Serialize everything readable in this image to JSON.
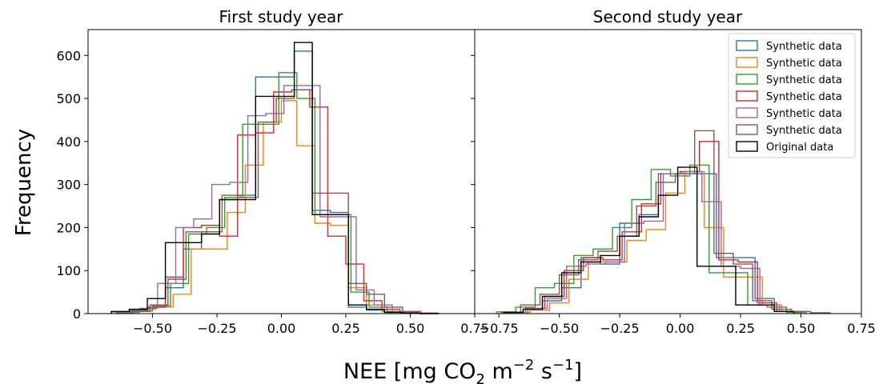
{
  "figure": {
    "ylabel": "Frequency",
    "xlabel_main": "NEE [mg CO",
    "xlabel_sub": "2",
    "xlabel_mid": " m",
    "xlabel_sup1": "−2",
    "xlabel_mid2": " s",
    "xlabel_sup2": "−1",
    "xlabel_end": "]"
  },
  "chart_data": [
    {
      "type": "histogram",
      "title": "First study year",
      "xlim": [
        -0.75,
        0.75
      ],
      "ylim": [
        0,
        660
      ],
      "xticks": [
        -0.5,
        -0.25,
        0.0,
        0.25,
        0.5,
        0.75
      ],
      "xtick_labels": [
        "−0.50",
        "−0.25",
        "0.00",
        "0.25",
        "0.50",
        "0.75"
      ],
      "yticks": [
        0,
        100,
        200,
        300,
        400,
        500,
        600
      ],
      "series": [
        {
          "color": "#1f77b4",
          "bins": [
            -0.66,
            -0.59,
            -0.52,
            -0.45,
            -0.38,
            -0.31,
            -0.24,
            -0.17,
            -0.1,
            -0.03,
            0.05,
            0.12,
            0.19,
            0.26,
            0.33,
            0.4,
            0.47,
            0.54,
            0.61
          ],
          "counts": [
            4,
            8,
            15,
            60,
            150,
            190,
            265,
            275,
            550,
            550,
            610,
            240,
            235,
            15,
            8,
            3,
            1,
            0
          ]
        },
        {
          "color": "#ff7f0e",
          "bins": [
            -0.62,
            -0.55,
            -0.49,
            -0.42,
            -0.35,
            -0.28,
            -0.21,
            -0.14,
            -0.07,
            0.0,
            0.06,
            0.13,
            0.19,
            0.26,
            0.33,
            0.39,
            0.46,
            0.53
          ],
          "counts": [
            3,
            10,
            15,
            45,
            150,
            150,
            235,
            345,
            445,
            495,
            390,
            210,
            205,
            60,
            20,
            5,
            1
          ]
        },
        {
          "color": "#2ca02c",
          "bins": [
            -0.64,
            -0.57,
            -0.5,
            -0.43,
            -0.36,
            -0.29,
            -0.22,
            -0.15,
            -0.08,
            -0.01,
            0.06,
            0.13,
            0.2,
            0.27,
            0.34,
            0.41,
            0.48,
            0.55
          ],
          "counts": [
            2,
            6,
            18,
            70,
            185,
            200,
            270,
            440,
            440,
            560,
            500,
            230,
            230,
            50,
            15,
            5,
            1
          ]
        },
        {
          "color": "#d62728",
          "bins": [
            -0.59,
            -0.52,
            -0.45,
            -0.38,
            -0.31,
            -0.24,
            -0.17,
            -0.1,
            -0.03,
            0.04,
            0.11,
            0.18,
            0.25,
            0.32,
            0.39,
            0.46,
            0.53,
            0.6
          ],
          "counts": [
            5,
            15,
            85,
            200,
            205,
            180,
            415,
            420,
            515,
            520,
            480,
            180,
            115,
            30,
            10,
            3,
            1
          ]
        },
        {
          "color": "#9467bd",
          "bins": [
            -0.62,
            -0.55,
            -0.48,
            -0.41,
            -0.34,
            -0.27,
            -0.2,
            -0.13,
            -0.06,
            0.01,
            0.08,
            0.15,
            0.22,
            0.29,
            0.36,
            0.43,
            0.5
          ],
          "counts": [
            3,
            12,
            70,
            200,
            220,
            300,
            305,
            460,
            465,
            530,
            530,
            225,
            225,
            55,
            20,
            4
          ]
        },
        {
          "color": "#8c564b",
          "bins": [
            -0.58,
            -0.51,
            -0.44,
            -0.37,
            -0.3,
            -0.23,
            -0.16,
            -0.09,
            -0.02,
            0.05,
            0.12,
            0.19,
            0.26,
            0.33,
            0.4,
            0.47,
            0.54,
            0.61
          ],
          "counts": [
            5,
            20,
            80,
            190,
            190,
            275,
            270,
            445,
            500,
            520,
            280,
            280,
            70,
            45,
            15,
            5,
            1
          ]
        },
        {
          "color": "#000000",
          "bins": [
            -0.66,
            -0.59,
            -0.52,
            -0.45,
            -0.38,
            -0.31,
            -0.24,
            -0.17,
            -0.1,
            -0.03,
            0.05,
            0.12,
            0.19,
            0.26,
            0.33,
            0.4,
            0.47,
            0.54,
            0.61
          ],
          "counts": [
            5,
            10,
            35,
            165,
            165,
            185,
            265,
            265,
            505,
            505,
            630,
            230,
            230,
            20,
            10,
            3,
            1,
            0
          ]
        }
      ]
    },
    {
      "type": "histogram",
      "title": "Second study year",
      "xlim": [
        -0.85,
        0.75
      ],
      "ylim": [
        0,
        660
      ],
      "xticks": [
        -0.75,
        -0.5,
        -0.25,
        0.0,
        0.25,
        0.5,
        0.75
      ],
      "xtick_labels": [
        "−0.75",
        "−0.50",
        "−0.25",
        "0.00",
        "0.25",
        "0.50",
        "0.75"
      ],
      "yticks": [
        0,
        100,
        200,
        300,
        400,
        500,
        600
      ],
      "legend": {
        "placement": "upper right",
        "entries": [
          {
            "label": "Synthetic data",
            "color": "#1f77b4"
          },
          {
            "label": "Synthetic data",
            "color": "#ff7f0e"
          },
          {
            "label": "Synthetic data",
            "color": "#2ca02c"
          },
          {
            "label": "Synthetic data",
            "color": "#d62728"
          },
          {
            "label": "Synthetic data",
            "color": "#9467bd"
          },
          {
            "label": "Synthetic data",
            "color": "#8c564b"
          },
          {
            "label": "Original data",
            "color": "#000000"
          }
        ]
      },
      "series": [
        {
          "color": "#1f77b4",
          "bins": [
            -0.73,
            -0.65,
            -0.57,
            -0.49,
            -0.41,
            -0.33,
            -0.25,
            -0.17,
            -0.09,
            -0.01,
            0.07,
            0.15,
            0.23,
            0.31,
            0.39,
            0.47
          ],
          "counts": [
            3,
            10,
            30,
            60,
            130,
            115,
            210,
            230,
            325,
            325,
            325,
            130,
            130,
            35,
            5
          ]
        },
        {
          "color": "#ff7f0e",
          "bins": [
            -0.7,
            -0.62,
            -0.54,
            -0.46,
            -0.38,
            -0.3,
            -0.22,
            -0.14,
            -0.06,
            0.02,
            0.1,
            0.18,
            0.26,
            0.34,
            0.42,
            0.5
          ],
          "counts": [
            3,
            8,
            25,
            80,
            120,
            120,
            170,
            195,
            280,
            330,
            200,
            85,
            85,
            20,
            5
          ]
        },
        {
          "color": "#2ca02c",
          "bins": [
            -0.76,
            -0.68,
            -0.6,
            -0.52,
            -0.44,
            -0.36,
            -0.28,
            -0.2,
            -0.12,
            -0.04,
            0.04,
            0.12,
            0.2,
            0.28,
            0.36,
            0.44,
            0.52
          ],
          "counts": [
            4,
            15,
            60,
            70,
            135,
            150,
            200,
            265,
            335,
            320,
            345,
            95,
            95,
            20,
            15,
            3
          ]
        },
        {
          "color": "#d62728",
          "bins": [
            -0.72,
            -0.64,
            -0.56,
            -0.48,
            -0.4,
            -0.32,
            -0.24,
            -0.16,
            -0.08,
            0.0,
            0.08,
            0.16,
            0.24,
            0.32,
            0.4,
            0.48
          ],
          "counts": [
            3,
            12,
            40,
            100,
            130,
            125,
            190,
            255,
            325,
            330,
            400,
            125,
            120,
            25,
            5
          ]
        },
        {
          "color": "#9467bd",
          "bins": [
            -0.71,
            -0.63,
            -0.55,
            -0.47,
            -0.39,
            -0.31,
            -0.23,
            -0.15,
            -0.07,
            0.01,
            0.09,
            0.17,
            0.25,
            0.33,
            0.41,
            0.49
          ],
          "counts": [
            3,
            12,
            35,
            110,
            115,
            120,
            210,
            215,
            325,
            330,
            260,
            110,
            105,
            20,
            5
          ]
        },
        {
          "color": "#8c564b",
          "bins": [
            -0.74,
            -0.66,
            -0.58,
            -0.5,
            -0.42,
            -0.34,
            -0.26,
            -0.18,
            -0.1,
            -0.02,
            0.06,
            0.14,
            0.22,
            0.3,
            0.38,
            0.46,
            0.54,
            0.62
          ],
          "counts": [
            3,
            20,
            45,
            90,
            125,
            145,
            180,
            250,
            305,
            325,
            425,
            140,
            115,
            30,
            10,
            5,
            2
          ]
        },
        {
          "color": "#000000",
          "bins": [
            -0.73,
            -0.65,
            -0.57,
            -0.49,
            -0.41,
            -0.33,
            -0.25,
            -0.17,
            -0.09,
            -0.01,
            0.07,
            0.15,
            0.23,
            0.31,
            0.39,
            0.47
          ],
          "counts": [
            3,
            10,
            40,
            95,
            120,
            135,
            180,
            225,
            275,
            340,
            110,
            110,
            20,
            20,
            5
          ]
        }
      ]
    }
  ]
}
